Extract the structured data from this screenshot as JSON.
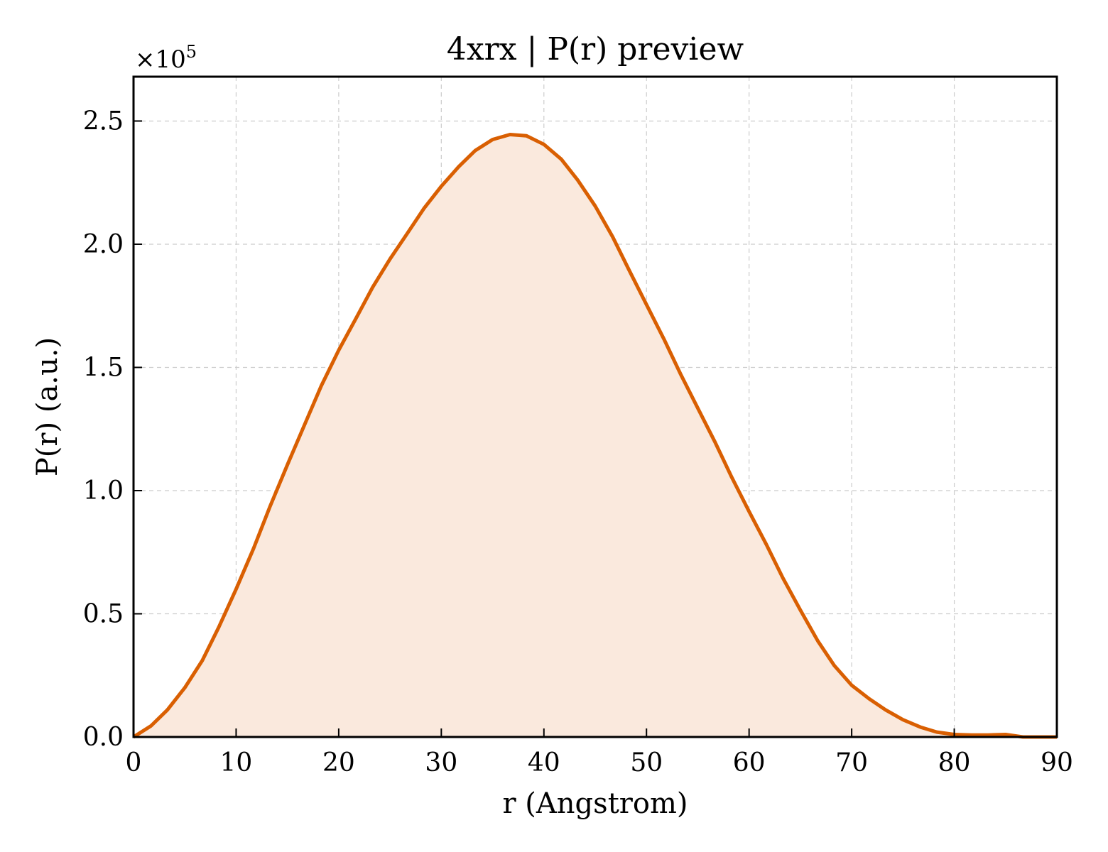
{
  "chart_data": {
    "type": "area",
    "title": "4xrx | P(r) preview",
    "xlabel": "r (Angstrom)",
    "ylabel": "P(r) (a.u.)",
    "y_multiplier_label": "×10",
    "y_multiplier_exponent": "5",
    "xlim": [
      0,
      90
    ],
    "ylim": [
      0,
      2.68
    ],
    "grid": true,
    "legend": "none",
    "x_ticks": [
      "0",
      "10",
      "20",
      "30",
      "40",
      "50",
      "60",
      "70",
      "80",
      "90"
    ],
    "y_ticks": [
      "0.0",
      "0.5",
      "1.0",
      "1.5",
      "2.0",
      "2.5"
    ],
    "colors": {
      "line": "#d95f02",
      "fill": "#fae9dd"
    },
    "series": [
      {
        "x": [
          0,
          1.7,
          3.3,
          5.0,
          6.7,
          8.3,
          10.0,
          11.7,
          13.3,
          15.0,
          16.7,
          18.3,
          20.0,
          21.7,
          23.3,
          25.0,
          26.7,
          28.3,
          30.0,
          31.7,
          33.3,
          35.0,
          36.7,
          38.3,
          40.0,
          41.7,
          43.3,
          45.0,
          46.7,
          48.3,
          50.0,
          51.7,
          53.3,
          55.0,
          56.7,
          58.3,
          60.0,
          61.7,
          63.3,
          65.0,
          66.7,
          68.3,
          70.0,
          71.7,
          73.3,
          75.0,
          76.7,
          78.3,
          80.0,
          81.7,
          83.3,
          85.0,
          86.7,
          88.3,
          90.0
        ],
        "values": [
          0.0,
          0.045,
          0.11,
          0.2,
          0.31,
          0.445,
          0.6,
          0.765,
          0.935,
          1.105,
          1.27,
          1.425,
          1.57,
          1.7,
          1.825,
          1.94,
          2.045,
          2.145,
          2.235,
          2.315,
          2.38,
          2.425,
          2.445,
          2.44,
          2.405,
          2.345,
          2.26,
          2.155,
          2.03,
          1.895,
          1.755,
          1.615,
          1.475,
          1.335,
          1.195,
          1.055,
          0.915,
          0.78,
          0.645,
          0.515,
          0.39,
          0.29,
          0.21,
          0.155,
          0.11,
          0.07,
          0.04,
          0.02,
          0.01,
          0.008,
          0.008,
          0.01,
          0.0,
          0.0,
          0.0
        ]
      }
    ]
  }
}
